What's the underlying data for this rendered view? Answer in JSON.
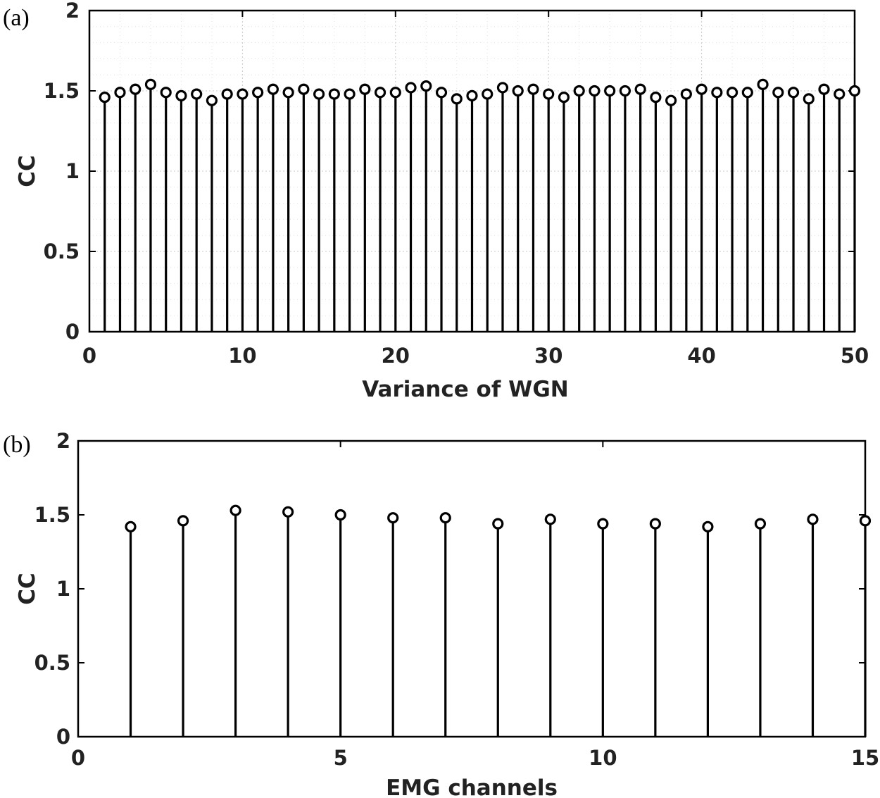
{
  "chart_data": [
    {
      "panel_label": "(a)",
      "type": "stem",
      "xlabel": "Variance of WGN",
      "ylabel": "CC",
      "xlim": [
        0,
        50
      ],
      "ylim": [
        0,
        2
      ],
      "xticks": [
        0,
        10,
        20,
        30,
        40,
        50
      ],
      "yticks": [
        0,
        0.5,
        1,
        1.5,
        2
      ],
      "xtick_labels": [
        "0",
        "10",
        "20",
        "30",
        "40",
        "50"
      ],
      "ytick_labels": [
        "0",
        "0.5",
        "1",
        "1.5",
        "2"
      ],
      "grid": true,
      "x": [
        1,
        2,
        3,
        4,
        5,
        6,
        7,
        8,
        9,
        10,
        11,
        12,
        13,
        14,
        15,
        16,
        17,
        18,
        19,
        20,
        21,
        22,
        23,
        24,
        25,
        26,
        27,
        28,
        29,
        30,
        31,
        32,
        33,
        34,
        35,
        36,
        37,
        38,
        39,
        40,
        41,
        42,
        43,
        44,
        45,
        46,
        47,
        48,
        49,
        50
      ],
      "values": [
        1.46,
        1.49,
        1.51,
        1.54,
        1.49,
        1.47,
        1.48,
        1.44,
        1.48,
        1.48,
        1.49,
        1.51,
        1.49,
        1.51,
        1.48,
        1.48,
        1.48,
        1.51,
        1.49,
        1.49,
        1.52,
        1.53,
        1.49,
        1.45,
        1.47,
        1.48,
        1.52,
        1.5,
        1.51,
        1.48,
        1.46,
        1.5,
        1.5,
        1.5,
        1.5,
        1.51,
        1.46,
        1.44,
        1.48,
        1.51,
        1.49,
        1.49,
        1.49,
        1.54,
        1.49,
        1.49,
        1.45,
        1.51,
        1.48,
        1.5
      ]
    },
    {
      "panel_label": "(b)",
      "type": "stem",
      "xlabel": "EMG channels",
      "ylabel": "CC",
      "xlim": [
        0,
        15
      ],
      "ylim": [
        0,
        2
      ],
      "xticks": [
        0,
        5,
        10,
        15
      ],
      "yticks": [
        0,
        0.5,
        1,
        1.5,
        2
      ],
      "xtick_labels": [
        "0",
        "5",
        "10",
        "15"
      ],
      "ytick_labels": [
        "0",
        "0.5",
        "1",
        "1.5",
        "2"
      ],
      "grid": false,
      "x": [
        1,
        2,
        3,
        4,
        5,
        6,
        7,
        8,
        9,
        10,
        11,
        12,
        13,
        14,
        15
      ],
      "values": [
        1.42,
        1.46,
        1.53,
        1.52,
        1.5,
        1.48,
        1.48,
        1.44,
        1.47,
        1.44,
        1.44,
        1.42,
        1.44,
        1.47,
        1.46
      ]
    }
  ]
}
